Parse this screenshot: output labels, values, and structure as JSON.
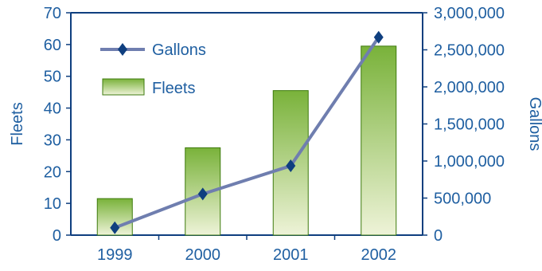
{
  "chart_data": {
    "type": "bar+line",
    "categories": [
      "1999",
      "2000",
      "2001",
      "2002"
    ],
    "series": [
      {
        "name": "Fleets",
        "type": "bar",
        "axis": "left",
        "values": [
          11.5,
          27.5,
          45.5,
          59.5
        ]
      },
      {
        "name": "Gallons",
        "type": "line",
        "axis": "right",
        "marker": "diamond",
        "values": [
          100000,
          555000,
          935000,
          2670000
        ]
      }
    ],
    "y_left": {
      "label": "Fleets",
      "lim": [
        0,
        70
      ],
      "ticks": [
        "0",
        "10",
        "20",
        "30",
        "40",
        "50",
        "60",
        "70"
      ]
    },
    "y_right": {
      "label": "Gallons",
      "lim": [
        0,
        3000000
      ],
      "ticks": [
        "0",
        "500,000",
        "1,000,000",
        "1,500,000",
        "2,000,000",
        "2,500,000",
        "3,000,000"
      ]
    },
    "legend": {
      "position": "top-left-inside",
      "items": [
        "Gallons",
        "Fleets"
      ]
    },
    "grid": false,
    "colors": {
      "axis_text": "#1f5fa1",
      "line": "#6f7eaf",
      "marker": "#0f3f7f",
      "bar_top": "#79b23a",
      "bar_bottom": "#eef3d8",
      "bar_border": "#3d7a0c",
      "frame": "#0f3f7f"
    }
  }
}
